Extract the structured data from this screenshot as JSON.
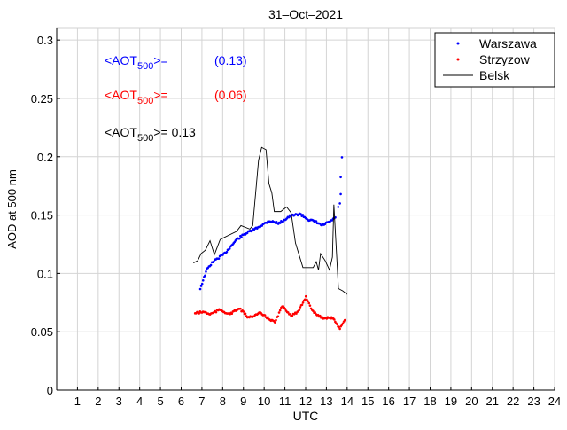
{
  "chart_data": {
    "type": "scatter",
    "title": "31–Oct–2021",
    "xlabel": "UTC",
    "ylabel": "AOD at 500 nm",
    "xlim": [
      0,
      24
    ],
    "ylim": [
      0,
      0.31
    ],
    "xticks": [
      1,
      2,
      3,
      4,
      5,
      6,
      7,
      8,
      9,
      10,
      11,
      12,
      13,
      14,
      15,
      16,
      17,
      18,
      19,
      20,
      21,
      22,
      23,
      24
    ],
    "yticks": [
      0,
      0.05,
      0.1,
      0.15,
      0.2,
      0.25,
      0.3
    ],
    "ytick_labels": [
      "0",
      "0.05",
      "0.1",
      "0.15",
      "0.2",
      "0.25",
      "0.3"
    ],
    "grid": true,
    "legend_position": "top-right",
    "series": [
      {
        "name": "Warszawa",
        "style": "dots",
        "color": "#0000ff",
        "x": [
          6.92,
          7.24,
          7.53,
          8.1,
          8.67,
          9.09,
          9.66,
          10.23,
          10.73,
          11.23,
          11.72,
          12.15,
          12.51,
          12.79,
          13.22,
          13.43
        ],
        "y": [
          0.087,
          0.1035,
          0.11,
          0.117,
          0.129,
          0.134,
          0.139,
          0.145,
          0.143,
          0.149,
          0.151,
          0.146,
          0.144,
          0.141,
          0.145,
          0.148
        ],
        "extra_points": {
          "x": [
            13.57,
            13.65,
            13.69,
            13.69,
            13.75
          ],
          "y": [
            0.157,
            0.16,
            0.168,
            0.1825,
            0.1995
          ]
        }
      },
      {
        "name": "Strzyzow",
        "style": "dots",
        "color": "#ff0000",
        "x": [
          6.67,
          7.1,
          7.39,
          7.88,
          8.31,
          8.81,
          9.24,
          9.8,
          10.52,
          10.87,
          11.3,
          11.65,
          12.01,
          12.36,
          12.79,
          13.29,
          13.65,
          13.89
        ],
        "y": [
          0.066,
          0.067,
          0.065,
          0.069,
          0.065,
          0.07,
          0.062,
          0.066,
          0.058,
          0.072,
          0.064,
          0.067,
          0.08,
          0.067,
          0.062,
          0.062,
          0.053,
          0.06
        ]
      },
      {
        "name": "Belsk",
        "style": "line",
        "color": "#000000",
        "x": [
          6.59,
          6.8,
          6.96,
          7.17,
          7.39,
          7.6,
          7.88,
          8.1,
          8.67,
          8.88,
          9.31,
          9.45,
          9.73,
          9.88,
          10.09,
          10.23,
          10.37,
          10.49,
          10.8,
          11.08,
          11.3,
          11.51,
          11.87,
          12.36,
          12.51,
          12.62,
          12.72,
          12.94,
          13.15,
          13.29,
          13.36,
          13.58,
          13.79,
          14.0
        ],
        "y": [
          0.109,
          0.111,
          0.117,
          0.12,
          0.128,
          0.116,
          0.129,
          0.131,
          0.136,
          0.141,
          0.138,
          0.141,
          0.197,
          0.208,
          0.206,
          0.177,
          0.169,
          0.153,
          0.153,
          0.157,
          0.152,
          0.126,
          0.105,
          0.105,
          0.11,
          0.103,
          0.117,
          0.111,
          0.103,
          0.114,
          0.159,
          0.087,
          0.085,
          0.082
        ]
      }
    ],
    "annotations": [
      {
        "prefix": "<AOT",
        "sub": "500",
        "suffix": ">=",
        "value": "(0.13)",
        "color": "#0000ff"
      },
      {
        "prefix": "<AOT",
        "sub": "500",
        "suffix": ">=",
        "value": "(0.06)",
        "color": "#ff0000"
      },
      {
        "prefix": "<AOT",
        "sub": "500",
        "suffix": ">= ",
        "value": "0.13",
        "color": "#000000"
      }
    ]
  }
}
